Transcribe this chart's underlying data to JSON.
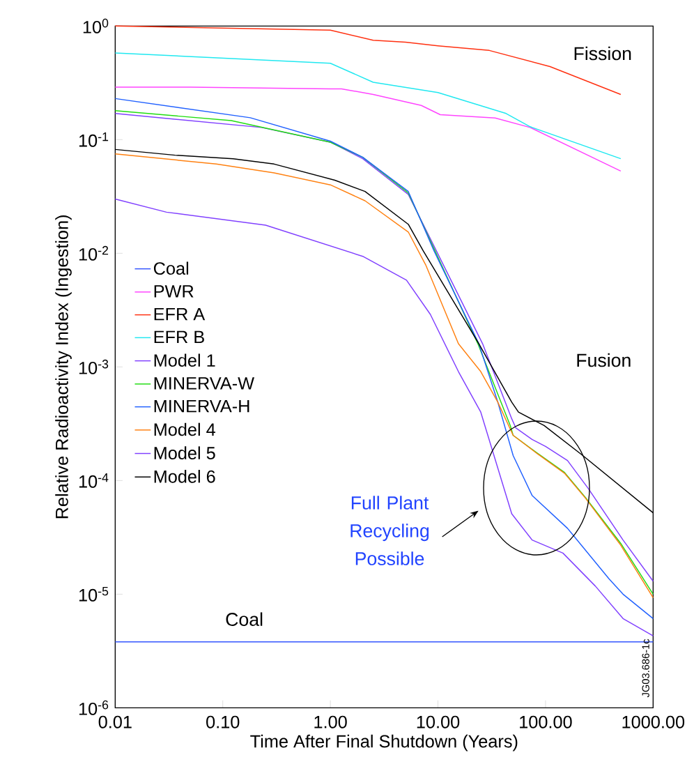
{
  "chart_data": {
    "type": "line",
    "xlabel": "Time After Final Shutdown (Years)",
    "ylabel": "Relative Radioactivity Index (Ingestion)",
    "log": "xy",
    "marker": "none",
    "line_style": "solid",
    "legend": "left",
    "xlim": [
      0.01,
      1000
    ],
    "ylim": [
      1e-06,
      1
    ],
    "xticks": [
      {
        "value": 0.01,
        "label": "0.01"
      },
      {
        "value": 0.1,
        "label": "0.10"
      },
      {
        "value": 1,
        "label": "1.00"
      },
      {
        "value": 10,
        "label": "10.00"
      },
      {
        "value": 100,
        "label": "100.00"
      },
      {
        "value": 1000,
        "label": "1000.00"
      }
    ],
    "yticks": [
      {
        "value": 1e-06,
        "label": "10$^{-6}$"
      },
      {
        "value": 1e-05,
        "label": "10$^{-5}$"
      },
      {
        "value": 0.0001,
        "label": "10$^{-4}$"
      },
      {
        "value": 0.001,
        "label": "10$^{-3}$"
      },
      {
        "value": 0.01,
        "label": "10$^{-2}$"
      },
      {
        "value": 0.1,
        "label": "10$^{-1}$"
      },
      {
        "value": 1,
        "label": "10$^{0}$"
      }
    ],
    "series": [
      {
        "name": "Coal",
        "color": "#3355ff",
        "x": [
          0.01,
          1000
        ],
        "values": [
          3.8e-06,
          3.8e-06
        ]
      },
      {
        "name": "PWR",
        "color": "#ff44ff",
        "x": [
          0.01,
          0.05,
          1,
          1.27,
          2.5,
          7,
          10.5,
          34,
          72,
          500
        ],
        "values": [
          0.29,
          0.29,
          0.28,
          0.28,
          0.25,
          0.2,
          0.166,
          0.155,
          0.128,
          0.053
        ]
      },
      {
        "name": "EFR A",
        "color": "#ff3010",
        "x": [
          0.01,
          1,
          2.5,
          5,
          10,
          30,
          110,
          500
        ],
        "values": [
          1.0,
          0.92,
          0.75,
          0.72,
          0.67,
          0.61,
          0.44,
          0.25
        ]
      },
      {
        "name": "EFR B",
        "color": "#20e8f0",
        "x": [
          0.01,
          1,
          2.5,
          10,
          43,
          72,
          500
        ],
        "values": [
          0.58,
          0.47,
          0.32,
          0.26,
          0.17,
          0.13,
          0.068
        ]
      },
      {
        "name": "Model 1",
        "color": "#8040ff",
        "x": [
          0.01,
          0.23,
          1,
          2,
          5.3,
          26,
          48.5,
          53,
          75,
          100,
          160,
          250,
          525,
          1000
        ],
        "values": [
          0.17,
          0.128,
          0.095,
          0.068,
          0.033,
          0.0016,
          0.00035,
          0.00029,
          0.00023,
          0.0002,
          0.00015,
          8.5e-05,
          3e-05,
          1.3e-05
        ]
      },
      {
        "name": "MINERVA-W",
        "color": "#20dd10",
        "x": [
          0.01,
          0.12,
          1,
          2,
          5.3,
          23.5,
          47,
          50,
          84,
          150,
          235,
          500,
          1000
        ],
        "values": [
          0.18,
          0.147,
          0.095,
          0.07,
          0.034,
          0.0016,
          0.000305,
          0.00025,
          0.000174,
          0.000118,
          7.1e-05,
          2.8e-05,
          1e-05
        ]
      },
      {
        "name": "MINERVA-H",
        "color": "#2060ff",
        "x": [
          0.01,
          0.18,
          1,
          2,
          5.3,
          9.2,
          24,
          36,
          50,
          75,
          160,
          390,
          525,
          1000
        ],
        "values": [
          0.23,
          0.156,
          0.097,
          0.07,
          0.035,
          0.0105,
          0.0016,
          0.00049,
          0.000166,
          7.4e-05,
          3.8e-05,
          1.36e-05,
          1e-05,
          6.1e-06
        ]
      },
      {
        "name": "Model 4",
        "color": "#ff8010",
        "x": [
          0.01,
          0.087,
          0.3,
          1,
          2.1,
          5.3,
          7.7,
          15.5,
          25,
          36,
          50,
          84,
          150,
          235,
          500,
          1000
        ],
        "values": [
          0.075,
          0.061,
          0.051,
          0.04,
          0.029,
          0.0154,
          0.0079,
          0.0016,
          0.00091,
          0.00049,
          0.00025,
          0.000172,
          0.000116,
          7e-05,
          2.7e-05,
          9.3e-06
        ]
      },
      {
        "name": "Model 5",
        "color": "#8040ff",
        "x": [
          0.01,
          0.03,
          0.25,
          2,
          5.1,
          8.5,
          15.5,
          25,
          48.5,
          75,
          145,
          290,
          525,
          1000
        ],
        "values": [
          0.03,
          0.023,
          0.0177,
          0.0094,
          0.0058,
          0.0029,
          0.00091,
          0.0004,
          5.1e-05,
          3e-05,
          2.3e-05,
          1.18e-05,
          6.1e-06,
          4.3e-06
        ]
      },
      {
        "name": "Model 6",
        "color": "#000000",
        "x": [
          0.01,
          0.036,
          0.125,
          0.3,
          1.1,
          2.1,
          5.3,
          7.3,
          24,
          48.5,
          56,
          97,
          215,
          1000
        ],
        "values": [
          0.082,
          0.073,
          0.068,
          0.061,
          0.044,
          0.035,
          0.018,
          0.0105,
          0.0016,
          0.00049,
          0.0004,
          0.000305,
          0.00017,
          5.2e-05
        ]
      }
    ],
    "annotations": [
      "Fission",
      "Fusion",
      "Coal",
      "Full Plant Recycling Possible",
      "JG03.686-1c"
    ]
  }
}
